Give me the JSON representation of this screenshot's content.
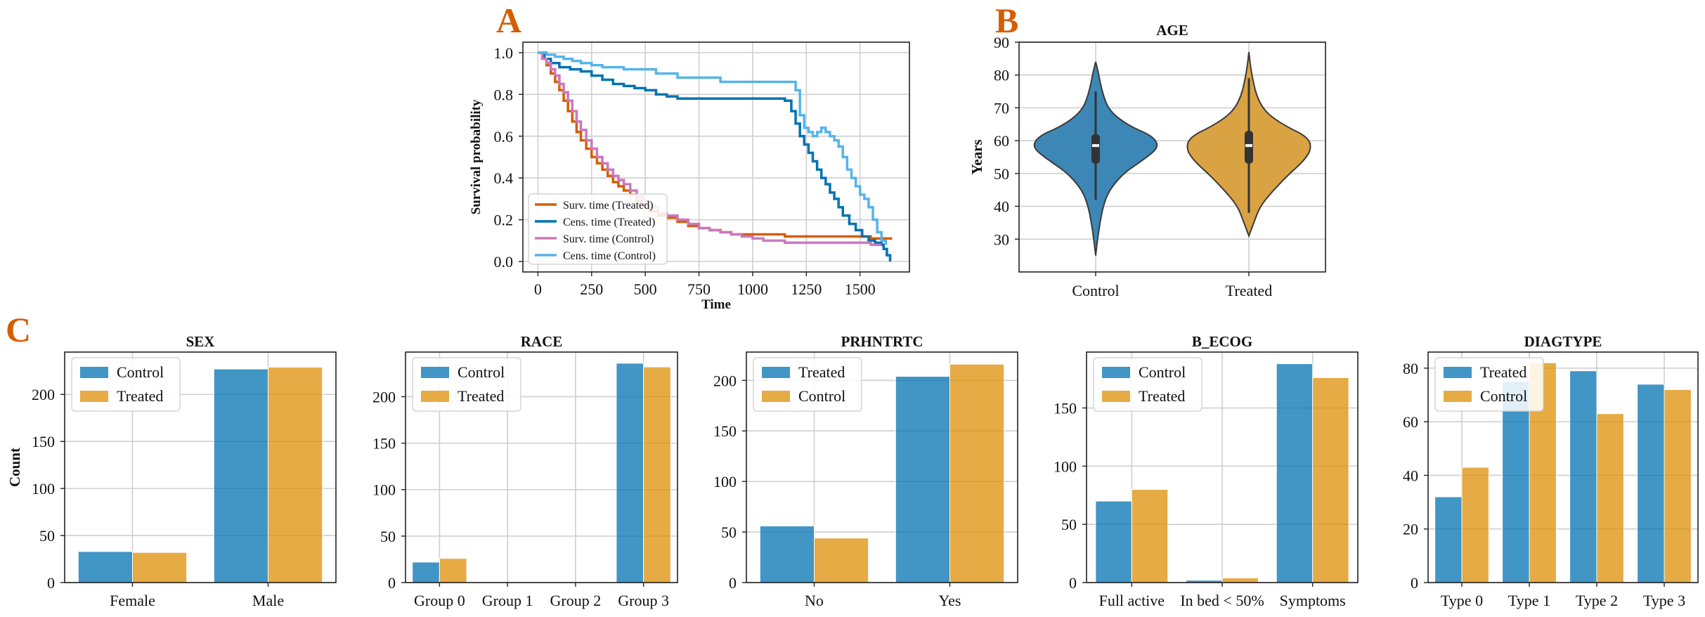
{
  "panel_letters": {
    "a": "A",
    "b": "B",
    "c": "C"
  },
  "colors": {
    "letter": "#d55e00",
    "blue": "#0173b2",
    "gold": "#de8f05",
    "orange": "#d55e00",
    "dark_blue": "#0173b2",
    "pink": "#cc78bc",
    "light_blue": "#56b4e9",
    "violin_blue": "#3c87b5",
    "violin_gold": "#d9a243",
    "grid": "#cfcfcf"
  },
  "chart_data": [
    {
      "id": "km",
      "type": "line",
      "title": "",
      "xlabel": "Time",
      "ylabel": "Survival probability",
      "xlim": [
        -70,
        1730
      ],
      "ylim": [
        -0.05,
        1.05
      ],
      "xticks": [
        0,
        250,
        500,
        750,
        1000,
        1250,
        1500
      ],
      "yticks": [
        0.0,
        0.2,
        0.4,
        0.6,
        0.8,
        1.0
      ],
      "ytick_labels": [
        "0.0",
        "0.2",
        "0.4",
        "0.6",
        "0.8",
        "1.0"
      ],
      "grid": true,
      "legend_position": "lower-left",
      "series": [
        {
          "name": "Surv. time (Treated)",
          "color": "#d55e00",
          "x": [
            0,
            20,
            40,
            60,
            80,
            100,
            120,
            140,
            160,
            180,
            200,
            225,
            250,
            275,
            300,
            325,
            350,
            375,
            400,
            430,
            460,
            490,
            520,
            560,
            600,
            650,
            700,
            750,
            800,
            850,
            900,
            1000,
            1100,
            1150,
            1200,
            1300,
            1400,
            1500,
            1550,
            1650
          ],
          "y": [
            1.0,
            0.97,
            0.94,
            0.9,
            0.86,
            0.82,
            0.77,
            0.72,
            0.67,
            0.62,
            0.58,
            0.54,
            0.5,
            0.47,
            0.44,
            0.41,
            0.38,
            0.36,
            0.34,
            0.32,
            0.29,
            0.27,
            0.24,
            0.22,
            0.21,
            0.19,
            0.17,
            0.16,
            0.15,
            0.14,
            0.13,
            0.13,
            0.13,
            0.12,
            0.12,
            0.12,
            0.12,
            0.12,
            0.11,
            0.11
          ]
        },
        {
          "name": "Cens. time (Treated)",
          "color": "#0173b2",
          "x": [
            0,
            30,
            60,
            100,
            150,
            200,
            250,
            300,
            350,
            400,
            450,
            500,
            550,
            600,
            650,
            700,
            800,
            900,
            1000,
            1100,
            1150,
            1180,
            1200,
            1220,
            1240,
            1260,
            1280,
            1300,
            1320,
            1340,
            1360,
            1380,
            1400,
            1420,
            1450,
            1480,
            1510,
            1540,
            1570,
            1600,
            1610,
            1625,
            1640
          ],
          "y": [
            1.0,
            0.97,
            0.95,
            0.93,
            0.92,
            0.91,
            0.89,
            0.87,
            0.85,
            0.84,
            0.83,
            0.82,
            0.8,
            0.79,
            0.78,
            0.78,
            0.78,
            0.78,
            0.78,
            0.78,
            0.77,
            0.72,
            0.66,
            0.6,
            0.56,
            0.52,
            0.48,
            0.44,
            0.4,
            0.37,
            0.33,
            0.3,
            0.26,
            0.22,
            0.18,
            0.15,
            0.12,
            0.1,
            0.09,
            0.08,
            0.06,
            0.03,
            0.0
          ]
        },
        {
          "name": "Surv. time (Control)",
          "color": "#cc78bc",
          "x": [
            0,
            20,
            40,
            60,
            80,
            100,
            120,
            140,
            160,
            180,
            200,
            225,
            250,
            275,
            300,
            325,
            350,
            375,
            400,
            430,
            460,
            490,
            520,
            560,
            600,
            650,
            700,
            750,
            800,
            850,
            900,
            950,
            1000,
            1050,
            1100,
            1150,
            1200,
            1300,
            1400,
            1500,
            1550,
            1600
          ],
          "y": [
            1.0,
            0.97,
            0.95,
            0.92,
            0.89,
            0.85,
            0.81,
            0.77,
            0.72,
            0.67,
            0.63,
            0.58,
            0.54,
            0.5,
            0.47,
            0.44,
            0.41,
            0.39,
            0.37,
            0.34,
            0.31,
            0.29,
            0.26,
            0.23,
            0.22,
            0.2,
            0.18,
            0.16,
            0.15,
            0.14,
            0.13,
            0.12,
            0.11,
            0.1,
            0.1,
            0.09,
            0.09,
            0.09,
            0.09,
            0.09,
            0.08,
            0.08
          ]
        },
        {
          "name": "Cens. time (Control)",
          "color": "#56b4e9",
          "x": [
            0,
            40,
            80,
            120,
            160,
            200,
            250,
            300,
            350,
            400,
            450,
            500,
            550,
            600,
            650,
            700,
            750,
            800,
            850,
            1000,
            1100,
            1150,
            1200,
            1220,
            1240,
            1260,
            1280,
            1300,
            1320,
            1340,
            1360,
            1380,
            1400,
            1420,
            1440,
            1460,
            1480,
            1500,
            1520,
            1540,
            1560,
            1580,
            1600,
            1620
          ],
          "y": [
            1.0,
            0.99,
            0.98,
            0.97,
            0.96,
            0.95,
            0.94,
            0.93,
            0.93,
            0.92,
            0.92,
            0.92,
            0.9,
            0.9,
            0.88,
            0.88,
            0.88,
            0.88,
            0.86,
            0.86,
            0.86,
            0.86,
            0.82,
            0.7,
            0.64,
            0.62,
            0.6,
            0.62,
            0.64,
            0.62,
            0.6,
            0.58,
            0.55,
            0.5,
            0.44,
            0.4,
            0.36,
            0.32,
            0.3,
            0.26,
            0.2,
            0.14,
            0.1,
            0.08
          ]
        }
      ]
    },
    {
      "id": "age",
      "type": "violin",
      "title": "AGE",
      "xlabel": "",
      "ylabel": "Years",
      "ylim": [
        20,
        90
      ],
      "yticks": [
        30,
        40,
        50,
        60,
        70,
        80,
        90
      ],
      "categories": [
        "Control",
        "Treated"
      ],
      "grid": true,
      "series": [
        {
          "name": "Control",
          "color": "#3c87b5",
          "median": 58.5,
          "q1": 53,
          "q3": 62,
          "whisker_low": 42,
          "whisker_high": 75,
          "min": 25,
          "max": 84,
          "density_y": [
            25,
            30,
            35,
            40,
            45,
            50,
            53,
            56,
            58,
            60,
            62,
            64,
            67,
            70,
            74,
            78,
            81,
            84
          ],
          "density_w": [
            0.0,
            0.03,
            0.07,
            0.12,
            0.22,
            0.45,
            0.68,
            0.9,
            1.0,
            0.98,
            0.85,
            0.6,
            0.35,
            0.2,
            0.12,
            0.07,
            0.04,
            0.0
          ]
        },
        {
          "name": "Treated",
          "color": "#d9a243",
          "median": 58.5,
          "q1": 53,
          "q3": 63,
          "whisker_low": 38,
          "whisker_high": 79,
          "min": 31,
          "max": 87,
          "density_y": [
            31,
            35,
            40,
            45,
            50,
            53,
            56,
            58,
            60,
            62,
            64,
            67,
            70,
            74,
            78,
            82,
            87
          ],
          "density_w": [
            0.0,
            0.08,
            0.18,
            0.4,
            0.66,
            0.84,
            0.97,
            1.0,
            0.98,
            0.86,
            0.64,
            0.38,
            0.22,
            0.12,
            0.07,
            0.03,
            0.0
          ]
        }
      ]
    },
    {
      "id": "sex",
      "type": "bar",
      "title": "SEX",
      "xlabel": "",
      "ylabel": "Count",
      "categories": [
        "Female",
        "Male"
      ],
      "ylim": [
        0,
        245
      ],
      "yticks": [
        0,
        50,
        100,
        150,
        200
      ],
      "grid": true,
      "legend_position": "top-left",
      "series": [
        {
          "name": "Control",
          "color": "#0173b2",
          "values": [
            33,
            227
          ]
        },
        {
          "name": "Treated",
          "color": "#de8f05",
          "values": [
            32,
            229
          ]
        }
      ]
    },
    {
      "id": "race",
      "type": "bar",
      "title": "RACE",
      "xlabel": "",
      "ylabel": "",
      "categories": [
        "Group 0",
        "Group 1",
        "Group 2",
        "Group 3"
      ],
      "ylim": [
        0,
        248
      ],
      "yticks": [
        0,
        50,
        100,
        150,
        200
      ],
      "grid": true,
      "legend_position": "top-left",
      "series": [
        {
          "name": "Control",
          "color": "#0173b2",
          "values": [
            22,
            0,
            0,
            236
          ]
        },
        {
          "name": "Treated",
          "color": "#de8f05",
          "values": [
            26,
            0,
            0,
            232
          ]
        }
      ]
    },
    {
      "id": "prhntrtc",
      "type": "bar",
      "title": "PRHNTRTC",
      "xlabel": "",
      "ylabel": "",
      "categories": [
        "No",
        "Yes"
      ],
      "ylim": [
        0,
        228
      ],
      "yticks": [
        0,
        50,
        100,
        150,
        200
      ],
      "grid": true,
      "legend_position": "top-left",
      "series": [
        {
          "name": "Treated",
          "color": "#0173b2",
          "values": [
            56,
            204
          ]
        },
        {
          "name": "Control",
          "color": "#de8f05",
          "values": [
            44,
            216
          ]
        }
      ]
    },
    {
      "id": "b_ecog",
      "type": "bar",
      "title": "B_ECOG",
      "xlabel": "",
      "ylabel": "",
      "categories": [
        "Full active",
        "In bed < 50%",
        "Symptoms"
      ],
      "ylim": [
        0,
        198
      ],
      "yticks": [
        0,
        50,
        100,
        150
      ],
      "grid": true,
      "legend_position": "top-left",
      "series": [
        {
          "name": "Control",
          "color": "#0173b2",
          "values": [
            70,
            2,
            188
          ]
        },
        {
          "name": "Treated",
          "color": "#de8f05",
          "values": [
            80,
            4,
            176
          ]
        }
      ]
    },
    {
      "id": "diagtype",
      "type": "bar",
      "title": "DIAGTYPE",
      "xlabel": "",
      "ylabel": "",
      "categories": [
        "Type 0",
        "Type 1",
        "Type 2",
        "Type 3"
      ],
      "ylim": [
        0,
        86
      ],
      "yticks": [
        0,
        20,
        40,
        60,
        80
      ],
      "grid": true,
      "legend_position": "top-left",
      "series": [
        {
          "name": "Treated",
          "color": "#0173b2",
          "values": [
            32,
            75,
            79,
            74
          ]
        },
        {
          "name": "Control",
          "color": "#de8f05",
          "values": [
            43,
            82,
            63,
            72
          ]
        }
      ]
    }
  ]
}
